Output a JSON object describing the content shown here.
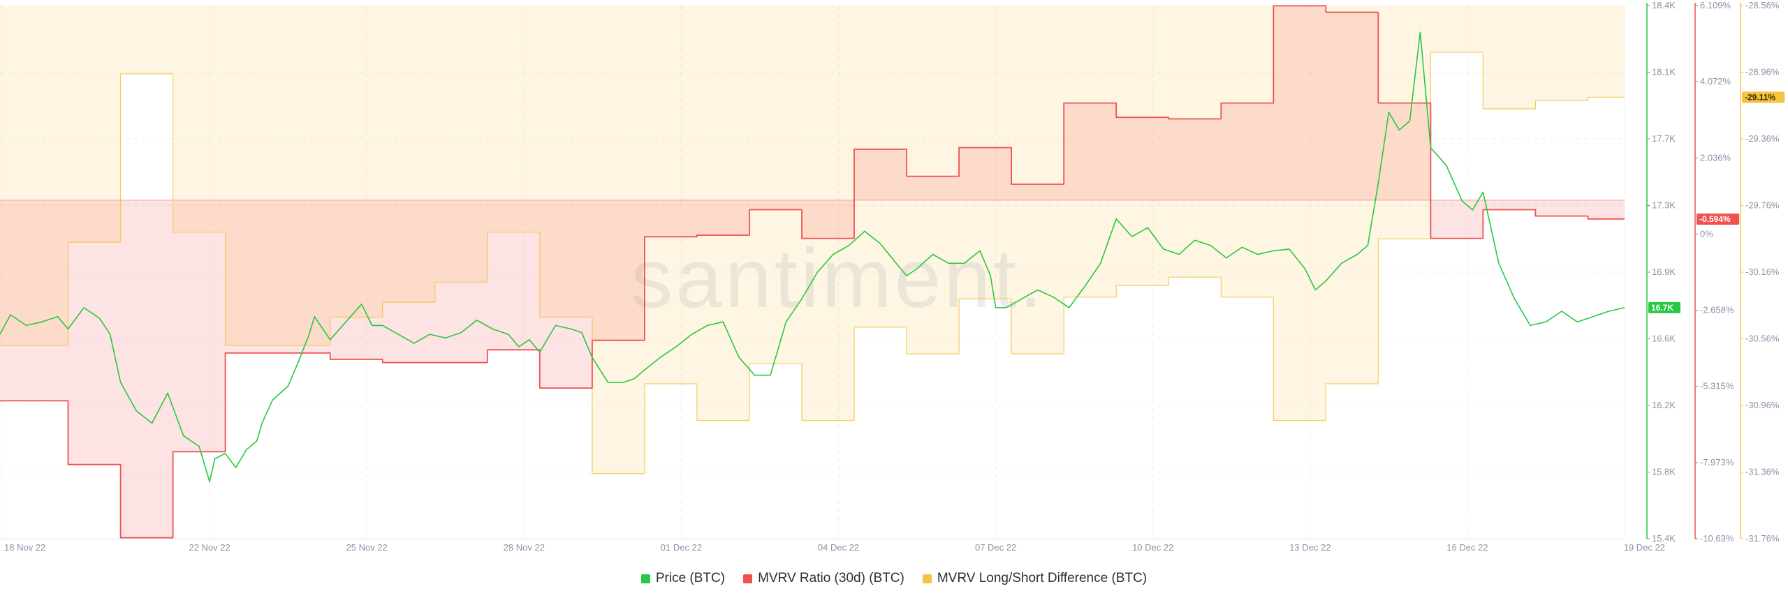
{
  "watermark": "santiment.",
  "chart_data": {
    "type": "line",
    "x_ticks": [
      "18 Nov 22",
      "22 Nov 22",
      "25 Nov 22",
      "28 Nov 22",
      "01 Dec 22",
      "04 Dec 22",
      "07 Dec 22",
      "10 Dec 22",
      "13 Dec 22",
      "16 Dec 22",
      "19 Dec 22"
    ],
    "x_tick_pos": [
      0,
      4,
      7,
      10,
      13,
      16,
      19,
      22,
      25,
      28,
      31
    ],
    "x_range": [
      0,
      31
    ],
    "axes": {
      "price": {
        "ticks": [
          "18.4K",
          "18.1K",
          "17.7K",
          "17.3K",
          "16.9K",
          "16.6K",
          "16.2K",
          "15.8K",
          "15.4K"
        ],
        "range": [
          15.4,
          18.4
        ],
        "color": "#26c940",
        "current_label": "16.7K",
        "current_value": 16.7
      },
      "mvrv": {
        "ticks": [
          "6.109%",
          "4.072%",
          "2.036%",
          "0%",
          "-2.658%",
          "-5.315%",
          "-7.973%",
          "-10.63%"
        ],
        "range": [
          -10.63,
          6.109
        ],
        "color": "#f0504f",
        "current_label": "-0.594%",
        "current_value": -0.594
      },
      "ls": {
        "ticks": [
          "-28.56%",
          "-28.96%",
          "-29.36%",
          "-29.76%",
          "-30.16%",
          "-30.56%",
          "-30.96%",
          "-31.36%",
          "-31.76%"
        ],
        "range": [
          -31.76,
          -28.56
        ],
        "color": "#f5c342",
        "current_label": "-29.11%",
        "current_value": -29.11
      }
    },
    "series": [
      {
        "name": "Price (BTC)",
        "color": "#26c940",
        "axis": "price",
        "x": [
          0,
          0.2,
          0.5,
          0.8,
          1.1,
          1.3,
          1.6,
          1.9,
          2.1,
          2.3,
          2.6,
          2.9,
          3.2,
          3.5,
          3.8,
          4.0,
          4.1,
          4.3,
          4.5,
          4.7,
          4.9,
          5.0,
          5.2,
          5.5,
          5.7,
          5.9,
          6.0,
          6.3,
          6.6,
          6.9,
          7.1,
          7.3,
          7.6,
          7.9,
          8.2,
          8.5,
          8.8,
          9.1,
          9.4,
          9.7,
          9.9,
          10.1,
          10.3,
          10.6,
          10.9,
          11.1,
          11.3,
          11.6,
          11.9,
          12.1,
          12.3,
          12.6,
          12.9,
          13.2,
          13.5,
          13.8,
          14.1,
          14.4,
          14.7,
          15.0,
          15.3,
          15.6,
          15.9,
          16.2,
          16.5,
          16.8,
          17.1,
          17.3,
          17.5,
          17.8,
          18.1,
          18.4,
          18.7,
          18.9,
          19.0,
          19.2,
          19.5,
          19.8,
          20.1,
          20.4,
          20.7,
          21.0,
          21.3,
          21.6,
          21.9,
          22.2,
          22.5,
          22.8,
          23.1,
          23.4,
          23.7,
          24.0,
          24.3,
          24.6,
          24.9,
          25.1,
          25.3,
          25.6,
          25.9,
          26.1,
          26.3,
          26.5,
          26.7,
          26.9,
          27.1,
          27.3,
          27.6,
          27.9,
          28.1,
          28.3,
          28.6,
          28.9,
          29.2,
          29.5,
          29.8,
          30.1,
          30.4,
          30.7,
          31.0
        ],
        "y": [
          16.55,
          16.66,
          16.6,
          16.62,
          16.65,
          16.58,
          16.7,
          16.64,
          16.55,
          16.28,
          16.12,
          16.05,
          16.22,
          15.98,
          15.92,
          15.72,
          15.85,
          15.88,
          15.8,
          15.9,
          15.95,
          16.05,
          16.18,
          16.26,
          16.4,
          16.55,
          16.65,
          16.52,
          16.62,
          16.72,
          16.6,
          16.6,
          16.55,
          16.5,
          16.55,
          16.53,
          16.56,
          16.63,
          16.58,
          16.55,
          16.48,
          16.52,
          16.45,
          16.6,
          16.58,
          16.56,
          16.42,
          16.28,
          16.28,
          16.3,
          16.35,
          16.42,
          16.48,
          16.55,
          16.6,
          16.62,
          16.42,
          16.32,
          16.32,
          16.62,
          16.75,
          16.9,
          17.0,
          17.05,
          17.13,
          17.06,
          16.95,
          16.88,
          16.92,
          17.0,
          16.95,
          16.95,
          17.02,
          16.88,
          16.7,
          16.7,
          16.75,
          16.8,
          16.76,
          16.7,
          16.82,
          16.95,
          17.2,
          17.1,
          17.15,
          17.03,
          17.0,
          17.08,
          17.05,
          16.98,
          17.04,
          17.0,
          17.02,
          17.03,
          16.92,
          16.8,
          16.85,
          16.95,
          17.0,
          17.05,
          17.4,
          17.8,
          17.7,
          17.75,
          18.25,
          17.6,
          17.5,
          17.3,
          17.25,
          17.35,
          16.95,
          16.75,
          16.6,
          16.62,
          16.68,
          16.62,
          16.65,
          16.68,
          16.7
        ]
      },
      {
        "name": "MVRV Ratio (30d) (BTC)",
        "color": "#f0504f",
        "axis": "mvrv",
        "x": [
          0,
          1.3,
          1.3,
          2.3,
          2.3,
          3.3,
          3.3,
          4.3,
          4.3,
          6.3,
          6.3,
          7.3,
          7.3,
          9.3,
          9.3,
          10.3,
          10.3,
          11.3,
          11.3,
          12.3,
          12.3,
          13.3,
          13.3,
          14.3,
          14.3,
          15.3,
          15.3,
          16.3,
          16.3,
          17.3,
          17.3,
          18.3,
          18.3,
          19.3,
          19.3,
          20.3,
          20.3,
          21.3,
          21.3,
          22.3,
          22.3,
          23.3,
          23.3,
          24.3,
          24.3,
          25.3,
          25.3,
          26.3,
          26.3,
          27.3,
          27.3,
          28.3,
          28.3,
          29.3,
          29.3,
          30.3,
          30.3,
          31.0
        ],
        "y": [
          -6.3,
          -6.3,
          -8.3,
          -8.3,
          -10.6,
          -10.6,
          -7.9,
          -7.9,
          -4.8,
          -4.8,
          -5.0,
          -5.0,
          -5.1,
          -5.1,
          -4.7,
          -4.7,
          -5.9,
          -5.9,
          -4.4,
          -4.4,
          -1.15,
          -1.15,
          -1.1,
          -1.1,
          -0.3,
          -0.3,
          -1.2,
          -1.2,
          1.6,
          1.6,
          0.75,
          0.75,
          1.65,
          1.65,
          0.5,
          0.5,
          3.05,
          3.05,
          2.6,
          2.6,
          2.55,
          2.55,
          3.05,
          3.05,
          6.1,
          6.1,
          5.9,
          5.9,
          3.05,
          3.05,
          -1.2,
          -1.2,
          -0.3,
          -0.3,
          -0.5,
          -0.5,
          -0.59,
          -0.59
        ]
      },
      {
        "name": "MVRV Long/Short Difference (BTC)",
        "color": "#f5c342",
        "axis": "ls",
        "x": [
          0,
          1.3,
          1.3,
          2.3,
          2.3,
          3.3,
          3.3,
          4.3,
          4.3,
          6.3,
          6.3,
          7.3,
          7.3,
          8.3,
          8.3,
          9.3,
          9.3,
          10.3,
          10.3,
          11.3,
          11.3,
          12.3,
          12.3,
          13.3,
          13.3,
          14.3,
          14.3,
          15.3,
          15.3,
          16.3,
          16.3,
          17.3,
          17.3,
          18.3,
          18.3,
          19.3,
          19.3,
          20.3,
          20.3,
          21.3,
          21.3,
          22.3,
          22.3,
          23.3,
          23.3,
          24.3,
          24.3,
          25.3,
          25.3,
          26.3,
          26.3,
          27.3,
          27.3,
          28.3,
          28.3,
          29.3,
          29.3,
          30.3,
          30.3,
          31.0
        ],
        "y": [
          -30.6,
          -30.6,
          -29.98,
          -29.98,
          -28.97,
          -28.97,
          -29.92,
          -29.92,
          -30.6,
          -30.6,
          -30.43,
          -30.43,
          -30.34,
          -30.34,
          -30.22,
          -30.22,
          -29.92,
          -29.92,
          -30.43,
          -30.43,
          -31.37,
          -31.37,
          -30.83,
          -30.83,
          -31.05,
          -31.05,
          -30.71,
          -30.71,
          -31.05,
          -31.05,
          -30.49,
          -30.49,
          -30.65,
          -30.65,
          -30.32,
          -30.32,
          -30.65,
          -30.65,
          -30.31,
          -30.31,
          -30.24,
          -30.24,
          -30.19,
          -30.19,
          -30.31,
          -30.31,
          -31.05,
          -31.05,
          -30.83,
          -30.83,
          -29.96,
          -29.96,
          -28.84,
          -28.84,
          -29.18,
          -29.18,
          -29.13,
          -29.13,
          -29.11,
          -29.11
        ]
      }
    ]
  }
}
